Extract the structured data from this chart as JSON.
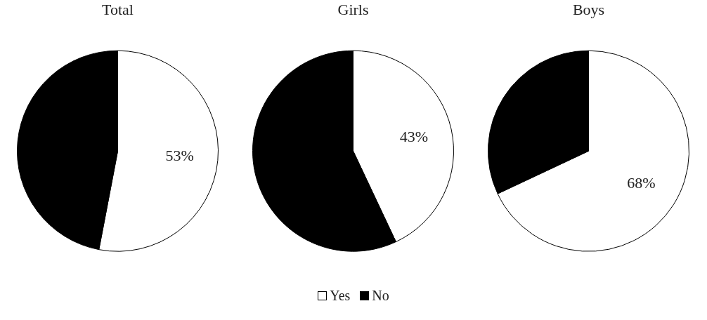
{
  "chart_data": [
    {
      "type": "pie",
      "title": "Total",
      "categories": [
        "Yes",
        "No"
      ],
      "values": [
        53,
        47
      ],
      "colors": [
        "#ffffff",
        "#000000"
      ],
      "value_labels": [
        "53%",
        null
      ],
      "legend": "bottom"
    },
    {
      "type": "pie",
      "title": "Girls",
      "categories": [
        null,
        null
      ],
      "values": [
        43,
        57
      ],
      "colors": [
        "#ffffff",
        "#000000"
      ],
      "value_labels": [
        "43%",
        null
      ]
    },
    {
      "type": "pie",
      "title": "Boys",
      "categories": [
        null,
        null
      ],
      "values": [
        68,
        32
      ],
      "colors": [
        "#ffffff",
        "#000000"
      ],
      "value_labels": [
        "68%",
        null
      ]
    }
  ]
}
